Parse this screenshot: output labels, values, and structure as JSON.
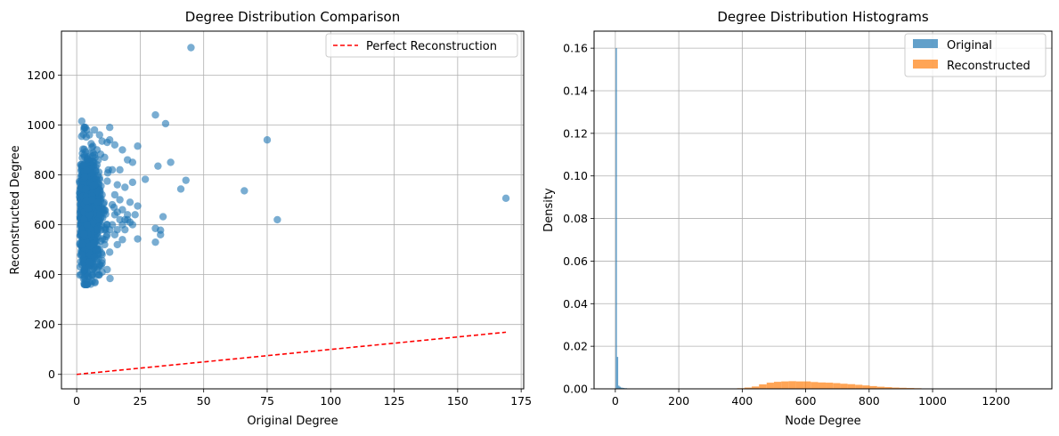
{
  "chart_data": [
    {
      "type": "scatter",
      "title": "Degree Distribution Comparison",
      "xlabel": "Original Degree",
      "ylabel": "Reconstructed Degree",
      "xlim": [
        -6,
        176
      ],
      "ylim": [
        -58,
        1376
      ],
      "xticks": [
        0,
        25,
        50,
        75,
        100,
        125,
        150,
        175
      ],
      "yticks": [
        0,
        200,
        400,
        600,
        800,
        1000,
        1200
      ],
      "grid": true,
      "legend_position": "top-right",
      "colors": {
        "scatter": "#1f77b4",
        "line": "#ff0000"
      },
      "reference_line": {
        "name": "Perfect Reconstruction",
        "x": [
          0,
          169
        ],
        "y": [
          0,
          169
        ],
        "style": "dashed"
      },
      "cluster": {
        "x_range": [
          1,
          16
        ],
        "y_range": [
          360,
          1010
        ],
        "density": "very dense"
      },
      "points": [
        [
          45,
          1310
        ],
        [
          31,
          1040
        ],
        [
          35,
          1005
        ],
        [
          13,
          990
        ],
        [
          2,
          1015
        ],
        [
          75,
          940
        ],
        [
          24,
          915
        ],
        [
          32,
          835
        ],
        [
          37,
          850
        ],
        [
          43,
          778
        ],
        [
          41,
          743
        ],
        [
          66,
          736
        ],
        [
          169,
          706
        ],
        [
          79,
          620
        ],
        [
          34,
          632
        ],
        [
          31,
          585
        ],
        [
          33,
          578
        ],
        [
          33,
          560
        ],
        [
          31,
          530
        ],
        [
          24,
          543
        ],
        [
          27,
          782
        ],
        [
          24,
          675
        ],
        [
          22,
          770
        ],
        [
          22,
          850
        ],
        [
          20,
          860
        ],
        [
          18,
          900
        ],
        [
          17,
          820
        ],
        [
          19,
          750
        ],
        [
          21,
          690
        ],
        [
          20,
          620
        ],
        [
          19,
          580
        ],
        [
          18,
          540
        ],
        [
          16,
          520
        ],
        [
          15,
          640
        ],
        [
          14,
          600
        ],
        [
          12,
          560
        ],
        [
          11,
          520
        ],
        [
          10,
          480
        ],
        [
          9,
          440
        ],
        [
          8,
          420
        ],
        [
          6,
          400
        ],
        [
          4,
          380
        ],
        [
          3,
          360
        ],
        [
          4,
          360
        ],
        [
          5,
          370
        ],
        [
          13,
          490
        ],
        [
          14,
          820
        ],
        [
          15,
          920
        ],
        [
          12,
          930
        ],
        [
          13,
          940
        ],
        [
          10,
          935
        ],
        [
          9,
          960
        ],
        [
          8,
          900
        ],
        [
          7,
          880
        ],
        [
          6,
          910
        ],
        [
          5,
          960
        ],
        [
          4,
          980
        ],
        [
          3,
          990
        ],
        [
          7,
          980
        ],
        [
          11,
          870
        ],
        [
          16,
          760
        ],
        [
          17,
          700
        ],
        [
          18,
          660
        ],
        [
          19,
          620
        ],
        [
          16,
          580
        ],
        [
          15,
          560
        ],
        [
          12,
          600
        ],
        [
          11,
          660
        ],
        [
          10,
          720
        ],
        [
          9,
          780
        ],
        [
          8,
          840
        ],
        [
          7,
          760
        ],
        [
          6,
          700
        ],
        [
          5,
          640
        ],
        [
          4,
          600
        ],
        [
          3,
          560
        ],
        [
          2,
          520
        ],
        [
          2,
          480
        ],
        [
          2,
          440
        ],
        [
          3,
          420
        ],
        [
          5,
          450
        ],
        [
          7,
          470
        ],
        [
          9,
          500
        ],
        [
          11,
          540
        ],
        [
          13,
          580
        ],
        [
          14,
          680
        ],
        [
          15,
          720
        ],
        [
          16,
          650
        ],
        [
          17,
          620
        ],
        [
          18,
          600
        ],
        [
          20,
          640
        ],
        [
          21,
          610
        ],
        [
          22,
          600
        ],
        [
          23,
          640
        ],
        [
          12,
          420
        ],
        [
          10,
          410
        ],
        [
          8,
          400
        ]
      ]
    },
    {
      "type": "histogram",
      "title": "Degree Distribution Histograms",
      "xlabel": "Node Degree",
      "ylabel": "Density",
      "xlim": [
        -67,
        1376
      ],
      "ylim": [
        0,
        0.168
      ],
      "xticks": [
        0,
        200,
        400,
        600,
        800,
        1000,
        1200
      ],
      "yticks": [
        0,
        0.02,
        0.04,
        0.06,
        0.08,
        0.1,
        0.12,
        0.14,
        0.16
      ],
      "grid": true,
      "legend_position": "top-right",
      "series": [
        {
          "name": "Original",
          "color": "#1f77b4",
          "bins": [
            [
              1,
              5,
              0.16
            ],
            [
              5,
              9,
              0.015
            ],
            [
              9,
              13,
              0.0015
            ],
            [
              13,
              17,
              0.001
            ],
            [
              17,
              21,
              0.0006
            ],
            [
              21,
              25,
              0.0005
            ],
            [
              25,
              29,
              0.0004
            ],
            [
              29,
              33,
              0.0003
            ],
            [
              33,
              37,
              0.0003
            ],
            [
              37,
              41,
              0.0002
            ],
            [
              41,
              45,
              0.0002
            ],
            [
              65,
              69,
              0.0001
            ],
            [
              74,
              78,
              0.0001
            ],
            [
              78,
              82,
              0.0001
            ]
          ]
        },
        {
          "name": "Reconstructed",
          "color": "#ff7f0e",
          "bins": [
            [
              360,
              384,
              0.0002
            ],
            [
              384,
              407,
              0.0003
            ],
            [
              407,
              430,
              0.0006
            ],
            [
              430,
              453,
              0.0011
            ],
            [
              453,
              477,
              0.0021
            ],
            [
              477,
              500,
              0.0029
            ],
            [
              500,
              523,
              0.0033
            ],
            [
              523,
              546,
              0.0035
            ],
            [
              546,
              570,
              0.0036
            ],
            [
              570,
              593,
              0.0035
            ],
            [
              593,
              616,
              0.0035
            ],
            [
              616,
              639,
              0.0032
            ],
            [
              639,
              663,
              0.003
            ],
            [
              663,
              686,
              0.0029
            ],
            [
              686,
              709,
              0.0027
            ],
            [
              709,
              732,
              0.0024
            ],
            [
              732,
              756,
              0.0022
            ],
            [
              756,
              779,
              0.0019
            ],
            [
              779,
              802,
              0.0016
            ],
            [
              802,
              825,
              0.0013
            ],
            [
              825,
              849,
              0.001
            ],
            [
              849,
              872,
              0.0008
            ],
            [
              872,
              895,
              0.0006
            ],
            [
              895,
              918,
              0.0005
            ],
            [
              918,
              942,
              0.0004
            ],
            [
              942,
              965,
              0.0003
            ],
            [
              965,
              988,
              0.0002
            ],
            [
              988,
              1011,
              0.0001
            ],
            [
              1011,
              1035,
              0.0001
            ],
            [
              1300,
              1320,
              5e-05
            ]
          ]
        }
      ]
    }
  ]
}
